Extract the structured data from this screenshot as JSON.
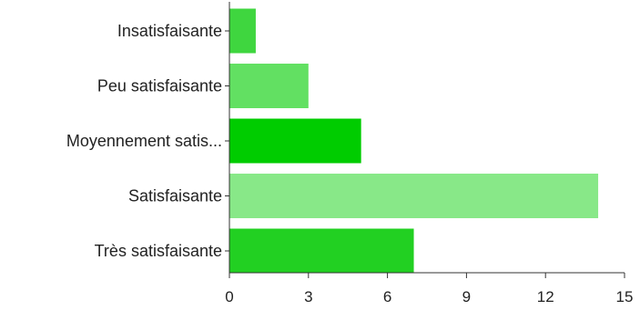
{
  "chart_data": {
    "type": "bar",
    "orientation": "horizontal",
    "categories": [
      "Insatisfaisante",
      "Peu satisfaisante",
      "Moyennement satis...",
      "Satisfaisante",
      "Très satisfaisante"
    ],
    "values": [
      1,
      3,
      5,
      14,
      7
    ],
    "bar_colors": [
      "#3fd63f",
      "#62e062",
      "#00cc00",
      "#88e888",
      "#22d022"
    ],
    "xlim": [
      0,
      15
    ],
    "xticks": [
      0,
      3,
      6,
      9,
      12,
      15
    ],
    "grid": false,
    "legend": "none"
  }
}
